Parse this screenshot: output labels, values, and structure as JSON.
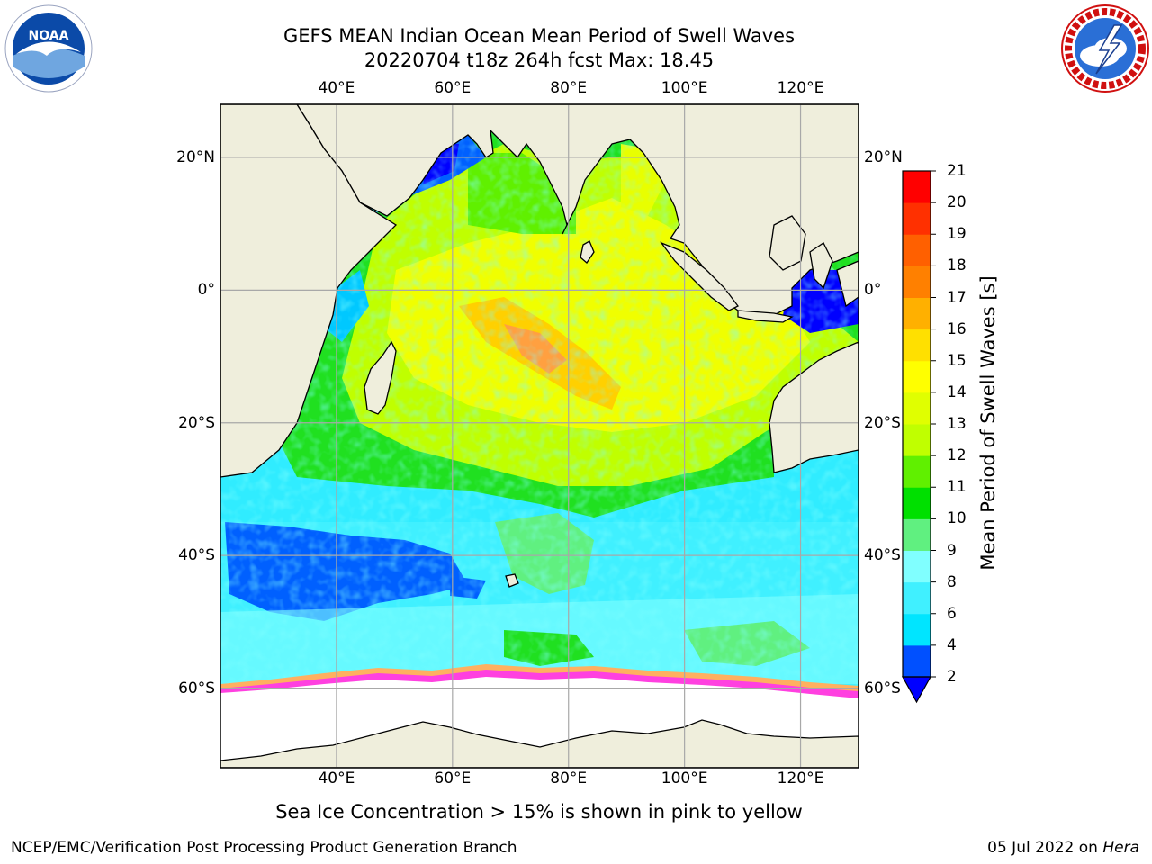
{
  "title_line1": "GEFS MEAN Indian Ocean Mean Period of Swell Waves",
  "title_line2": "20220704 t18z 264h fcst   Max: 18.45",
  "logos": {
    "left": "noaa-logo",
    "left_text": "NOAA",
    "right": "nws-logo"
  },
  "map": {
    "lon_ticks": [
      "40°E",
      "60°E",
      "80°E",
      "100°E",
      "120°E"
    ],
    "lat_ticks": [
      "20°N",
      "0°",
      "20°S",
      "40°S",
      "60°S"
    ],
    "lon_range": [
      20,
      130
    ],
    "lat_range": [
      -72,
      28
    ],
    "grid": true
  },
  "colorbar": {
    "title": "Mean Period of Swell Waves [s]",
    "levels": [
      "2",
      "4",
      "6",
      "8",
      "9",
      "10",
      "11",
      "12",
      "13",
      "14",
      "15",
      "16",
      "17",
      "18",
      "19",
      "20",
      "21"
    ],
    "colors": [
      "#0050ff",
      "#00e5ff",
      "#40f0ff",
      "#80ffff",
      "#60f080",
      "#00e000",
      "#60f000",
      "#c0ff00",
      "#e0ff00",
      "#ffff00",
      "#ffe000",
      "#ffb000",
      "#ff8000",
      "#ff6000",
      "#ff3000",
      "#ff0000"
    ],
    "extend_color": "#0000ff"
  },
  "colors": {
    "land": "#efeedc",
    "ice": "#ffffff",
    "ice_edge": "#ff40e0",
    "deep_blue": "#0000ff",
    "blue": "#0060ff",
    "cyan": "#00f0ff",
    "light_cyan": "#80ffff",
    "light_green": "#60f080",
    "green": "#20e020",
    "yellow_green": "#c0ff00",
    "yellow": "#f0ff00",
    "orange": "#ffa040"
  },
  "caption": "Sea Ice Concentration > 15% is shown in pink to yellow",
  "footer_left": "NCEP/EMC/Verification Post Processing Product Generation Branch",
  "footer_right_date": "05 Jul 2022 on",
  "footer_right_host": "Hera"
}
